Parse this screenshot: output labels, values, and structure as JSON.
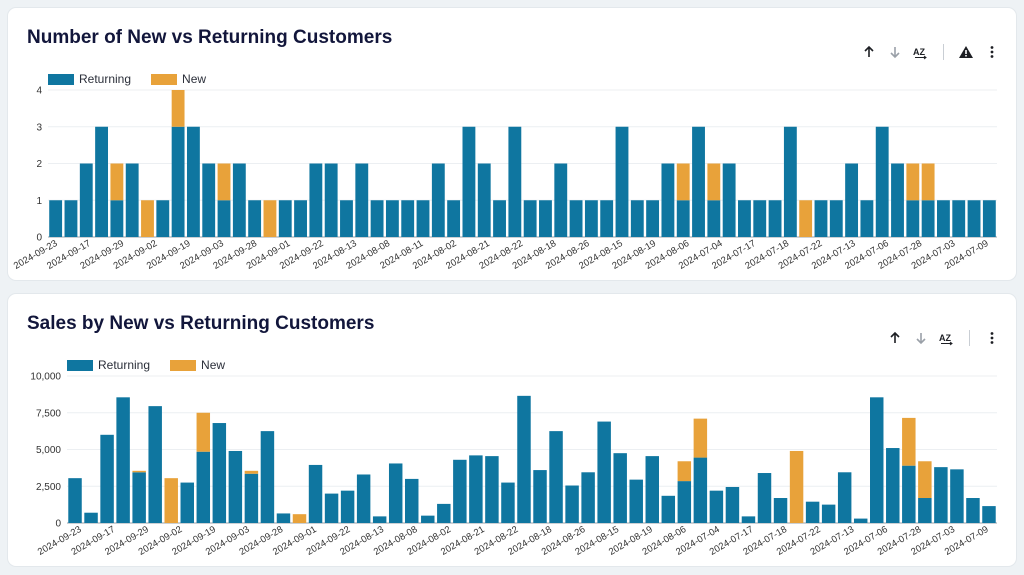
{
  "colors": {
    "returning": "#0f76a0",
    "new": "#e8a23a",
    "title": "#12163b",
    "grid": "#eceff2"
  },
  "toolbar": {
    "icons": [
      "sort-ascending-icon",
      "sort-descending-icon",
      "sort-az-icon",
      "warning-icon",
      "more-vert-icon"
    ],
    "sort_az_label": "AZ"
  },
  "chart_data": [
    {
      "type": "bar",
      "stacked": true,
      "title": "Number of New vs Returning Customers",
      "legend": [
        "Returning",
        "New"
      ],
      "legend_position": "top-left",
      "ylim": [
        0,
        4
      ],
      "yticks": [
        "0",
        "1",
        "2",
        "3",
        "4"
      ],
      "tick_labels": [
        "2024-09-23",
        "2024-09-17",
        "2024-09-29",
        "2024-09-02",
        "2024-09-19",
        "2024-09-03",
        "2024-09-28",
        "2024-09-01",
        "2024-09-22",
        "2024-08-13",
        "2024-08-08",
        "2024-08-11",
        "2024-08-02",
        "2024-08-21",
        "2024-08-22",
        "2024-08-18",
        "2024-08-26",
        "2024-08-15",
        "2024-08-19",
        "2024-08-06",
        "2024-07-04",
        "2024-07-17",
        "2024-07-18",
        "2024-07-22",
        "2024-07-13",
        "2024-07-06",
        "2024-07-28",
        "2024-07-03",
        "2024-07-09"
      ],
      "series": [
        {
          "name": "Returning",
          "values": [
            1,
            1,
            2,
            3,
            1,
            2,
            0,
            1,
            3,
            3,
            2,
            1,
            2,
            1,
            0,
            1,
            1,
            2,
            2,
            1,
            2,
            1,
            1,
            1,
            1,
            2,
            1,
            3,
            2,
            1,
            3,
            1,
            1,
            2,
            1,
            1,
            1,
            3,
            1,
            1,
            2,
            1,
            3,
            1,
            2,
            1,
            1,
            1,
            3,
            0,
            1,
            1,
            2,
            1,
            3,
            2,
            1,
            1,
            1,
            1,
            1,
            1
          ]
        },
        {
          "name": "New",
          "values": [
            0,
            0,
            0,
            0,
            1,
            0,
            1,
            0,
            1,
            0,
            0,
            1,
            0,
            0,
            1,
            0,
            0,
            0,
            0,
            0,
            0,
            0,
            0,
            0,
            0,
            0,
            0,
            0,
            0,
            0,
            0,
            0,
            0,
            0,
            0,
            0,
            0,
            0,
            0,
            0,
            0,
            1,
            0,
            1,
            0,
            0,
            0,
            0,
            0,
            1,
            0,
            0,
            0,
            0,
            0,
            0,
            1,
            1,
            0,
            0,
            0,
            0
          ]
        }
      ]
    },
    {
      "type": "bar",
      "stacked": true,
      "title": "Sales by New vs Returning Customers",
      "legend": [
        "Returning",
        "New"
      ],
      "legend_position": "top-left",
      "ylim": [
        0,
        10000
      ],
      "yticks": [
        "0",
        "2,500",
        "5,000",
        "7,500",
        "10,000"
      ],
      "tick_labels": [
        "2024-09-23",
        "2024-09-17",
        "2024-09-29",
        "2024-09-02",
        "2024-09-19",
        "2024-09-03",
        "2024-09-28",
        "2024-09-01",
        "2024-09-22",
        "2024-08-13",
        "2024-08-08",
        "2024-08-02",
        "2024-08-21",
        "2024-08-22",
        "2024-08-18",
        "2024-08-26",
        "2024-08-15",
        "2024-08-19",
        "2024-08-06",
        "2024-07-04",
        "2024-07-17",
        "2024-07-18",
        "2024-07-22",
        "2024-07-13",
        "2024-07-06",
        "2024-07-28",
        "2024-07-03",
        "2024-07-09"
      ],
      "series": [
        {
          "name": "Returning",
          "values": [
            3050,
            700,
            6000,
            8550,
            3450,
            7950,
            0,
            2750,
            4850,
            6800,
            4900,
            3350,
            6250,
            650,
            0,
            3950,
            2000,
            2200,
            3300,
            450,
            4050,
            3000,
            500,
            1300,
            4300,
            4600,
            4550,
            2750,
            8650,
            3600,
            6250,
            2550,
            3450,
            6900,
            4750,
            2950,
            4550,
            1850,
            2850,
            4450,
            2200,
            2450,
            450,
            3400,
            1700,
            0,
            1450,
            1250,
            3450,
            300,
            8550,
            5100,
            3900,
            1700,
            3800,
            3650,
            1700,
            1150
          ]
        },
        {
          "name": "New",
          "values": [
            0,
            0,
            0,
            0,
            100,
            0,
            3050,
            0,
            2650,
            0,
            0,
            200,
            0,
            0,
            600,
            0,
            0,
            0,
            0,
            0,
            0,
            0,
            0,
            0,
            0,
            0,
            0,
            0,
            0,
            0,
            0,
            0,
            0,
            0,
            0,
            0,
            0,
            0,
            1350,
            2650,
            0,
            0,
            0,
            0,
            0,
            4900,
            0,
            0,
            0,
            0,
            0,
            0,
            3250,
            2500,
            0,
            0,
            0,
            0
          ]
        }
      ]
    }
  ]
}
